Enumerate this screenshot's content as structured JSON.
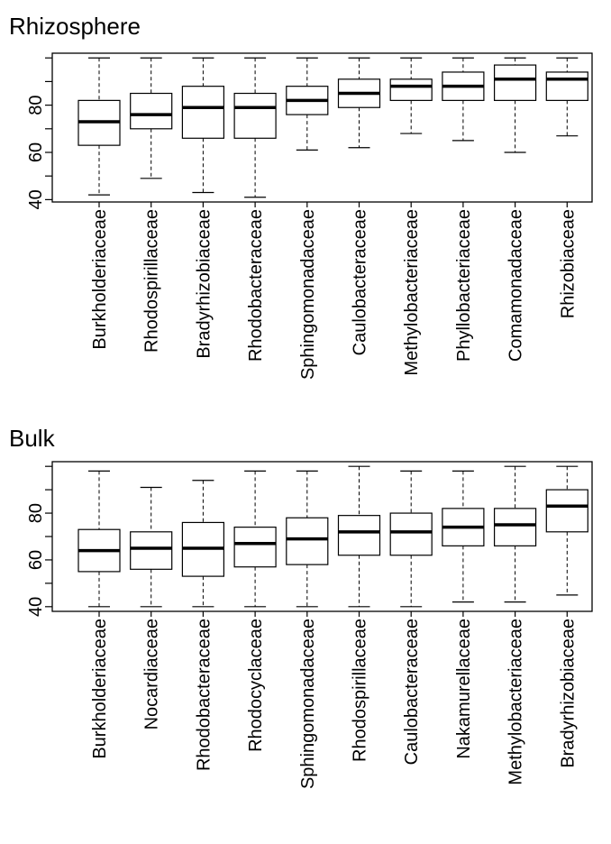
{
  "chart_data": [
    {
      "type": "box",
      "title": "Rhizosphere",
      "ylim": [
        39,
        102
      ],
      "yticks": [
        40,
        60,
        80
      ],
      "grid": false,
      "categories": [
        "Burkholderiaceae",
        "Rhodospirillaceae",
        "Bradyrhizobiaceae",
        "Rhodobacteraceae",
        "Sphingomonadaceae",
        "Caulobacteraceae",
        "Methylobacteriaceae",
        "Phyllobacteriaceae",
        "Comamonadaceae",
        "Rhizobiaceae"
      ],
      "boxes": [
        {
          "min": 42,
          "q1": 63,
          "median": 73,
          "q3": 82,
          "max": 100
        },
        {
          "min": 49,
          "q1": 70,
          "median": 76,
          "q3": 85,
          "max": 100
        },
        {
          "min": 43,
          "q1": 66,
          "median": 79,
          "q3": 88,
          "max": 100
        },
        {
          "min": 41,
          "q1": 66,
          "median": 79,
          "q3": 85,
          "max": 100
        },
        {
          "min": 61,
          "q1": 76,
          "median": 82,
          "q3": 88,
          "max": 100
        },
        {
          "min": 62,
          "q1": 79,
          "median": 85,
          "q3": 91,
          "max": 100
        },
        {
          "min": 68,
          "q1": 82,
          "median": 88,
          "q3": 91,
          "max": 100
        },
        {
          "min": 65,
          "q1": 82,
          "median": 88,
          "q3": 94,
          "max": 100
        },
        {
          "min": 60,
          "q1": 82,
          "median": 91,
          "q3": 97,
          "max": 100
        },
        {
          "min": 67,
          "q1": 82,
          "median": 91,
          "q3": 94,
          "max": 100
        }
      ]
    },
    {
      "type": "box",
      "title": "Bulk",
      "ylim": [
        38,
        102
      ],
      "yticks": [
        40,
        60,
        80
      ],
      "grid": false,
      "categories": [
        "Burkholderiaceae",
        "Nocardiaceae",
        "Rhodobacteraceae",
        "Rhodocyclaceae",
        "Sphingomonadaceae",
        "Rhodospirillaceae",
        "Caulobacteraceae",
        "Nakamurellaceae",
        "Methylobacteriaceae",
        "Bradyrhizobiaceae"
      ],
      "boxes": [
        {
          "min": 40,
          "q1": 55,
          "median": 64,
          "q3": 73,
          "max": 98
        },
        {
          "min": 40,
          "q1": 56,
          "median": 65,
          "q3": 72,
          "max": 91
        },
        {
          "min": 40,
          "q1": 53,
          "median": 65,
          "q3": 76,
          "max": 94
        },
        {
          "min": 40,
          "q1": 57,
          "median": 67,
          "q3": 74,
          "max": 98
        },
        {
          "min": 40,
          "q1": 58,
          "median": 69,
          "q3": 78,
          "max": 98
        },
        {
          "min": 40,
          "q1": 62,
          "median": 72,
          "q3": 79,
          "max": 100
        },
        {
          "min": 40,
          "q1": 62,
          "median": 72,
          "q3": 80,
          "max": 98
        },
        {
          "min": 42,
          "q1": 66,
          "median": 74,
          "q3": 82,
          "max": 98
        },
        {
          "min": 42,
          "q1": 66,
          "median": 75,
          "q3": 82,
          "max": 100
        },
        {
          "min": 45,
          "q1": 72,
          "median": 83,
          "q3": 90,
          "max": 100
        }
      ]
    }
  ]
}
